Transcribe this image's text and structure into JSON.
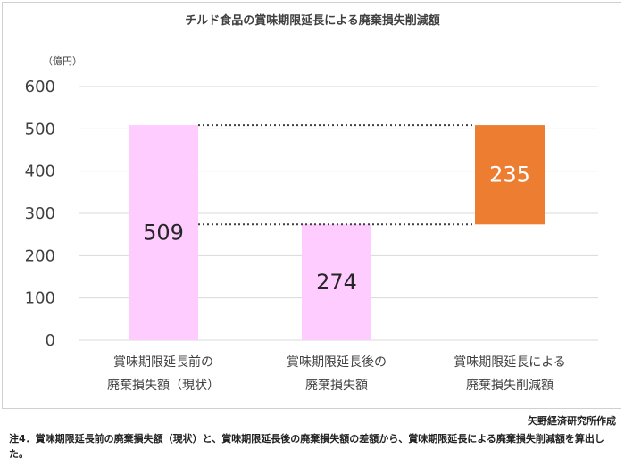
{
  "chart_data": {
    "type": "bar",
    "title": "チルド食品の賞味期限延長による廃棄損失削減額",
    "unit_label": "（億円）",
    "ylim": [
      0,
      600
    ],
    "yticks": [
      0,
      100,
      200,
      300,
      400,
      500,
      600
    ],
    "bars": [
      {
        "category": "賞味期限延長前の\n廃棄損失額（現状）",
        "lines": [
          "賞味期限延長前の",
          "廃棄損失額（現状）"
        ],
        "base": 0,
        "value": 509,
        "label": "509",
        "color": "#ffccff"
      },
      {
        "category": "賞味期限延長後の\n廃棄損失額",
        "lines": [
          "賞味期限延長後の",
          "廃棄損失額"
        ],
        "base": 0,
        "value": 274,
        "label": "274",
        "color": "#ffccff"
      },
      {
        "category": "賞味期限延長による\n廃棄損失削減額",
        "lines": [
          "賞味期限延長による",
          "廃棄損失削減額"
        ],
        "base": 274,
        "value": 235,
        "label": "235",
        "color": "#ed7d31"
      }
    ],
    "connectors": [
      [
        509,
        509
      ],
      [
        274,
        274
      ]
    ],
    "grid": true,
    "legend": "none"
  },
  "source": "矢野経済研究所作成",
  "note": "注4．賞味期限延長前の廃棄損失額（現状）と、賞味期限延長後の廃棄損失額の差額から、賞味期限延長による廃棄損失削減額を算出した。"
}
